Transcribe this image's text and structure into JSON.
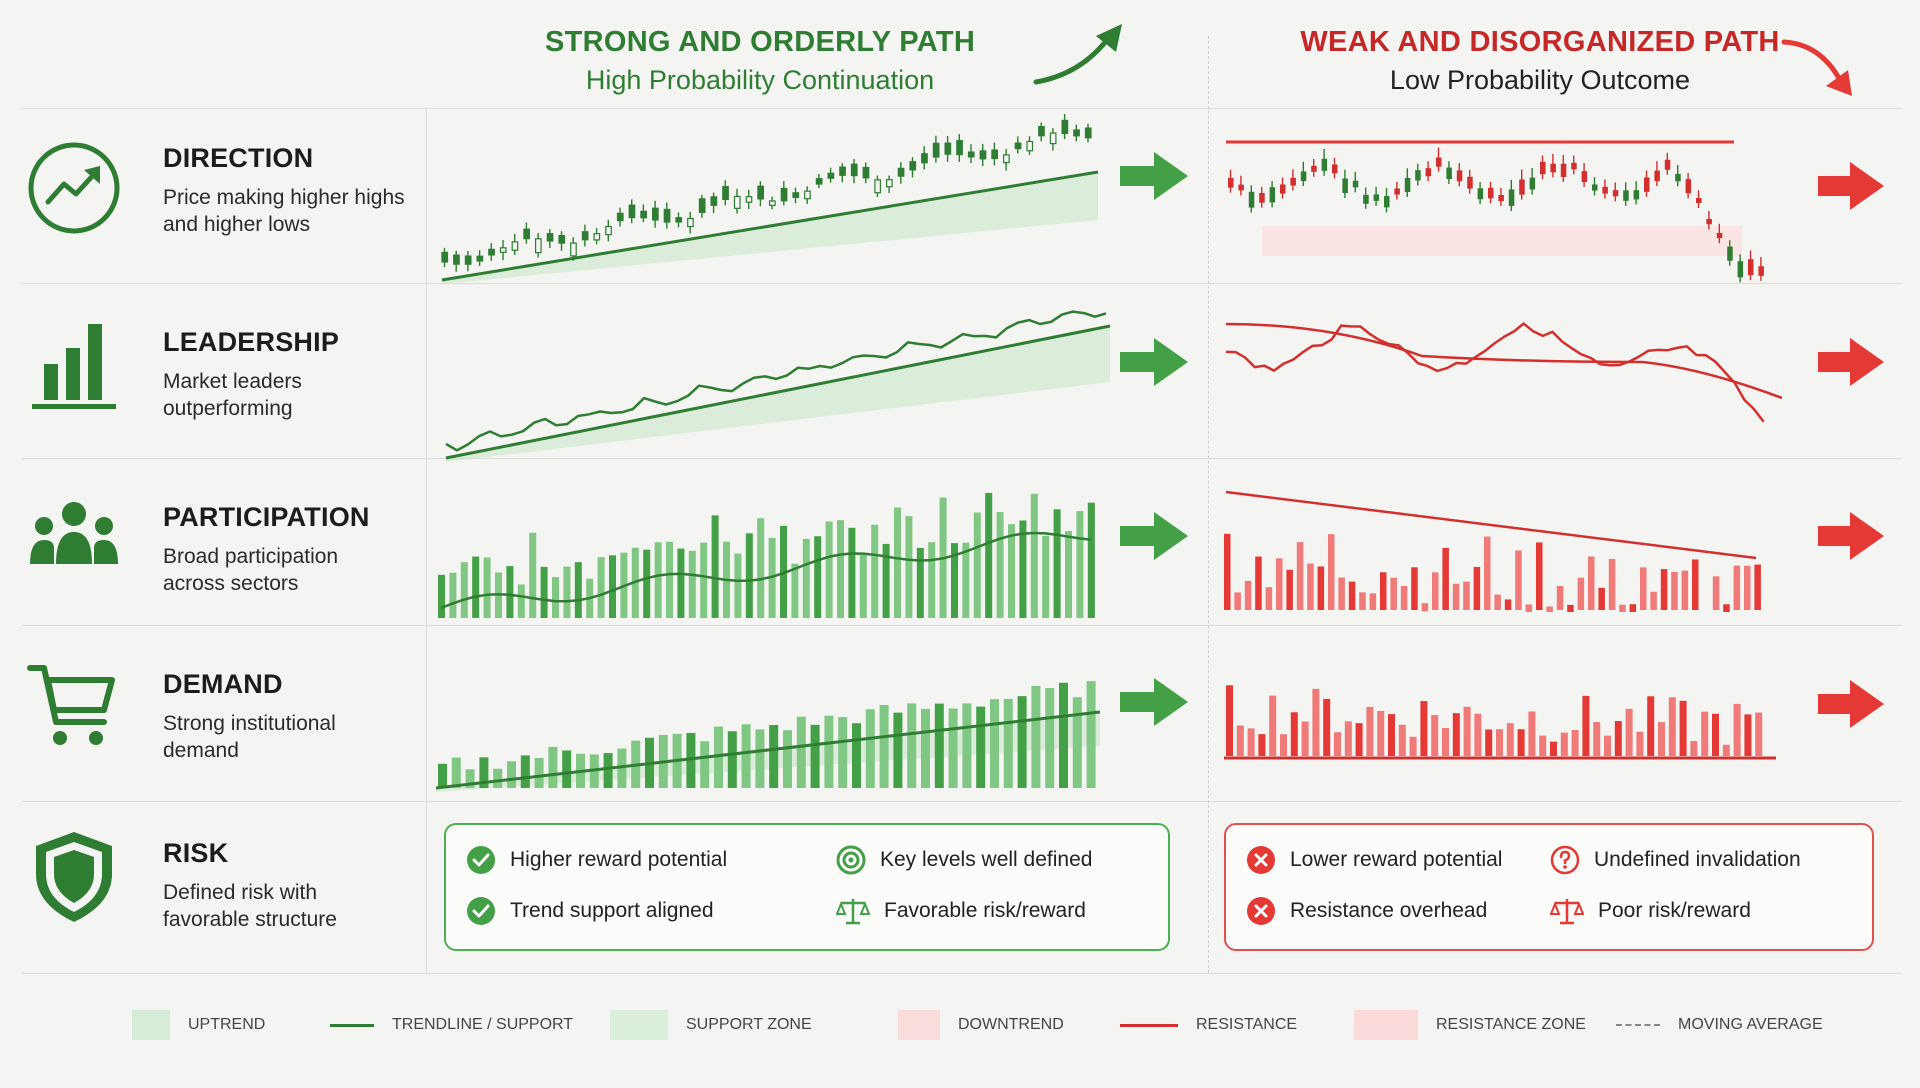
{
  "header": {
    "good_title": "STRONG AND ORDERLY PATH",
    "good_subtitle": "High Probability Continuation",
    "bad_title": "WEAK AND DISORGANIZED PATH",
    "bad_subtitle": "Low Probability Outcome"
  },
  "rows": [
    {
      "label": "DIRECTION",
      "desc_1": "Price making higher highs",
      "desc_2": "and higher lows",
      "icon": "trend-up-circle-icon"
    },
    {
      "label": "LEADERSHIP",
      "desc_1": "Market leaders",
      "desc_2": "outperforming",
      "icon": "bar-chart-icon"
    },
    {
      "label": "PARTICIPATION",
      "desc_1": "Broad participation",
      "desc_2": "across sectors",
      "icon": "people-icon"
    },
    {
      "label": "DEMAND",
      "desc_1": "Strong institutional",
      "desc_2": "demand",
      "icon": "shopping-cart-icon"
    },
    {
      "label": "RISK",
      "desc_1": "Defined risk with",
      "desc_2": "favorable structure",
      "icon": "shield-icon"
    }
  ],
  "good_box": {
    "item_1": "Higher reward potential",
    "item_2": "Trend support aligned",
    "item_3": "Key levels well defined",
    "item_4": "Favorable risk/reward"
  },
  "bad_box": {
    "item_1": "Lower reward potential",
    "item_2": "Resistance overhead",
    "item_3": "Undefined invalidation",
    "item_4": "Poor risk/reward"
  },
  "legend": {
    "uptrend": "UPTREND",
    "trendline": "TRENDLINE / SUPPORT",
    "support_zone": "SUPPORT ZONE",
    "downtrend": "DOWNTREND",
    "resistance": "RESISTANCE",
    "resistance_zone": "RESISTANCE ZONE",
    "moving_average": "MOVING AVERAGE"
  },
  "colors": {
    "green": "#2e7d32",
    "green_light": "#66bb6a",
    "red": "#d32f2f",
    "red_light": "#ef5350"
  }
}
